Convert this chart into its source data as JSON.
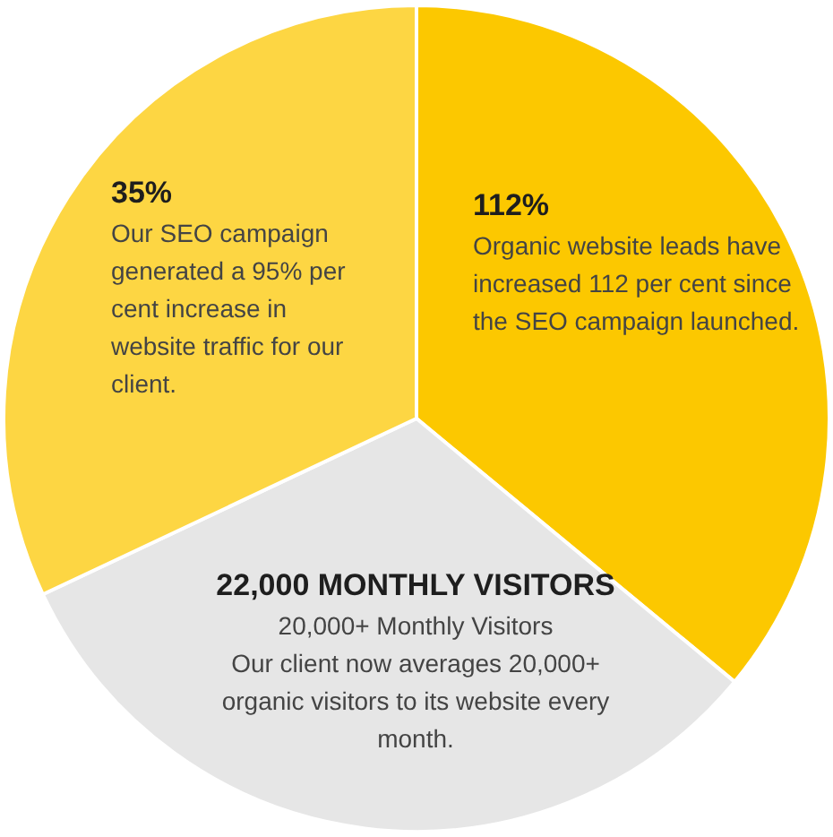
{
  "chart_data": {
    "type": "pie",
    "categories": [
      "112%",
      "22,000 MONTHLY VISITORS",
      "35%"
    ],
    "values": [
      36,
      32,
      32
    ],
    "colors": [
      "#fcc800",
      "#e6e6e6",
      "#fdd643"
    ],
    "annotations": [
      "Organic website leads have increased 112 per cent since the SEO campaign launched.",
      "20,000+ Monthly Visitors\nOur client now averages 20,000+ organic visitors to its website every month.",
      "Our SEO campaign generated a 95% per cent increase in website traffic for our client."
    ],
    "legend": false
  }
}
